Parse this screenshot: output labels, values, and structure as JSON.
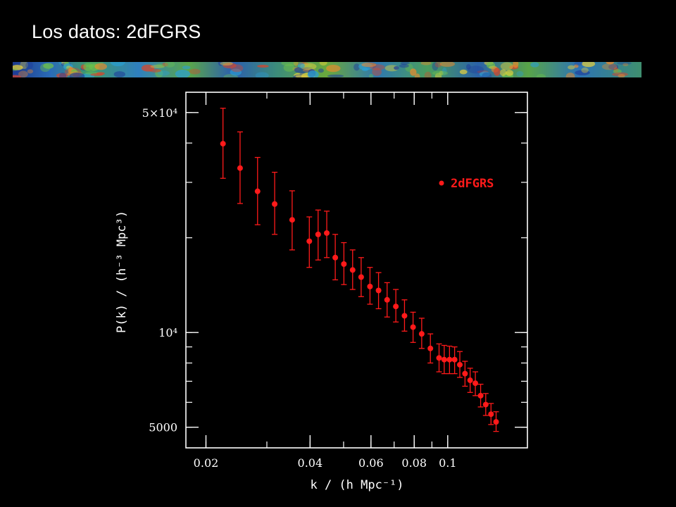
{
  "slide": {
    "title": "Los datos: 2dFGRS"
  },
  "colors": {
    "background": "#000000",
    "foreground": "#ffffff",
    "data": "#ff1a1a"
  },
  "chart_data": {
    "type": "scatter",
    "xscale": "log",
    "yscale": "log",
    "xlim": [
      0.0175,
      0.17
    ],
    "ylim": [
      4300,
      58000
    ],
    "xlabel": "k / (h Mpc⁻¹)",
    "ylabel": "P(k) / (h⁻³ Mpc³)",
    "xticks": [
      {
        "value": 0.02,
        "label": "0.02"
      },
      {
        "value": 0.04,
        "label": "0.04"
      },
      {
        "value": 0.06,
        "label": "0.06"
      },
      {
        "value": 0.08,
        "label": "0.08"
      },
      {
        "value": 0.1,
        "label": "0.1"
      }
    ],
    "yticks": [
      {
        "value": 5000,
        "label": "5000"
      },
      {
        "value": 10000,
        "label": "10⁴"
      },
      {
        "value": 50000,
        "label": "5×10⁴"
      }
    ],
    "legend": {
      "position": "top-right",
      "entries": [
        "2dFGRS"
      ]
    },
    "series": [
      {
        "name": "2dFGRS",
        "color": "#ff1a1a",
        "points": [
          {
            "x": 0.0224,
            "y": 39800,
            "lo": 30900,
            "hi": 51600
          },
          {
            "x": 0.0251,
            "y": 33300,
            "lo": 25700,
            "hi": 43400
          },
          {
            "x": 0.0282,
            "y": 28100,
            "lo": 22000,
            "hi": 36000
          },
          {
            "x": 0.0316,
            "y": 25600,
            "lo": 20500,
            "hi": 32300
          },
          {
            "x": 0.0355,
            "y": 22800,
            "lo": 18300,
            "hi": 28200
          },
          {
            "x": 0.0398,
            "y": 19500,
            "lo": 16100,
            "hi": 23300
          },
          {
            "x": 0.0422,
            "y": 20500,
            "lo": 17000,
            "hi": 24500
          },
          {
            "x": 0.0447,
            "y": 20700,
            "lo": 17300,
            "hi": 24300
          },
          {
            "x": 0.0473,
            "y": 17300,
            "lo": 14700,
            "hi": 20500
          },
          {
            "x": 0.0501,
            "y": 16500,
            "lo": 14200,
            "hi": 19300
          },
          {
            "x": 0.0531,
            "y": 15800,
            "lo": 13700,
            "hi": 18300
          },
          {
            "x": 0.0562,
            "y": 15000,
            "lo": 13000,
            "hi": 17300
          },
          {
            "x": 0.0596,
            "y": 14000,
            "lo": 12300,
            "hi": 16100
          },
          {
            "x": 0.0631,
            "y": 13600,
            "lo": 11900,
            "hi": 15500
          },
          {
            "x": 0.0668,
            "y": 12700,
            "lo": 11200,
            "hi": 14400
          },
          {
            "x": 0.0708,
            "y": 12100,
            "lo": 10800,
            "hi": 13700
          },
          {
            "x": 0.075,
            "y": 11300,
            "lo": 10100,
            "hi": 12700
          },
          {
            "x": 0.0794,
            "y": 10400,
            "lo": 9300,
            "hi": 11600
          },
          {
            "x": 0.0841,
            "y": 9900,
            "lo": 8900,
            "hi": 11100
          },
          {
            "x": 0.0891,
            "y": 8900,
            "lo": 8000,
            "hi": 9900
          },
          {
            "x": 0.0944,
            "y": 8300,
            "lo": 7500,
            "hi": 9200
          },
          {
            "x": 0.0977,
            "y": 8200,
            "lo": 7400,
            "hi": 9100
          },
          {
            "x": 0.1012,
            "y": 8200,
            "lo": 7400,
            "hi": 9050
          },
          {
            "x": 0.1047,
            "y": 8200,
            "lo": 7400,
            "hi": 9000
          },
          {
            "x": 0.1084,
            "y": 7900,
            "lo": 7200,
            "hi": 8700
          },
          {
            "x": 0.1122,
            "y": 7400,
            "lo": 6750,
            "hi": 8100
          },
          {
            "x": 0.1161,
            "y": 7050,
            "lo": 6450,
            "hi": 7700
          },
          {
            "x": 0.1202,
            "y": 6900,
            "lo": 6300,
            "hi": 7500
          },
          {
            "x": 0.1245,
            "y": 6300,
            "lo": 5800,
            "hi": 6850
          },
          {
            "x": 0.1288,
            "y": 5900,
            "lo": 5450,
            "hi": 6400
          },
          {
            "x": 0.1334,
            "y": 5500,
            "lo": 5100,
            "hi": 5950
          },
          {
            "x": 0.138,
            "y": 5200,
            "lo": 4850,
            "hi": 5600
          }
        ]
      }
    ]
  }
}
